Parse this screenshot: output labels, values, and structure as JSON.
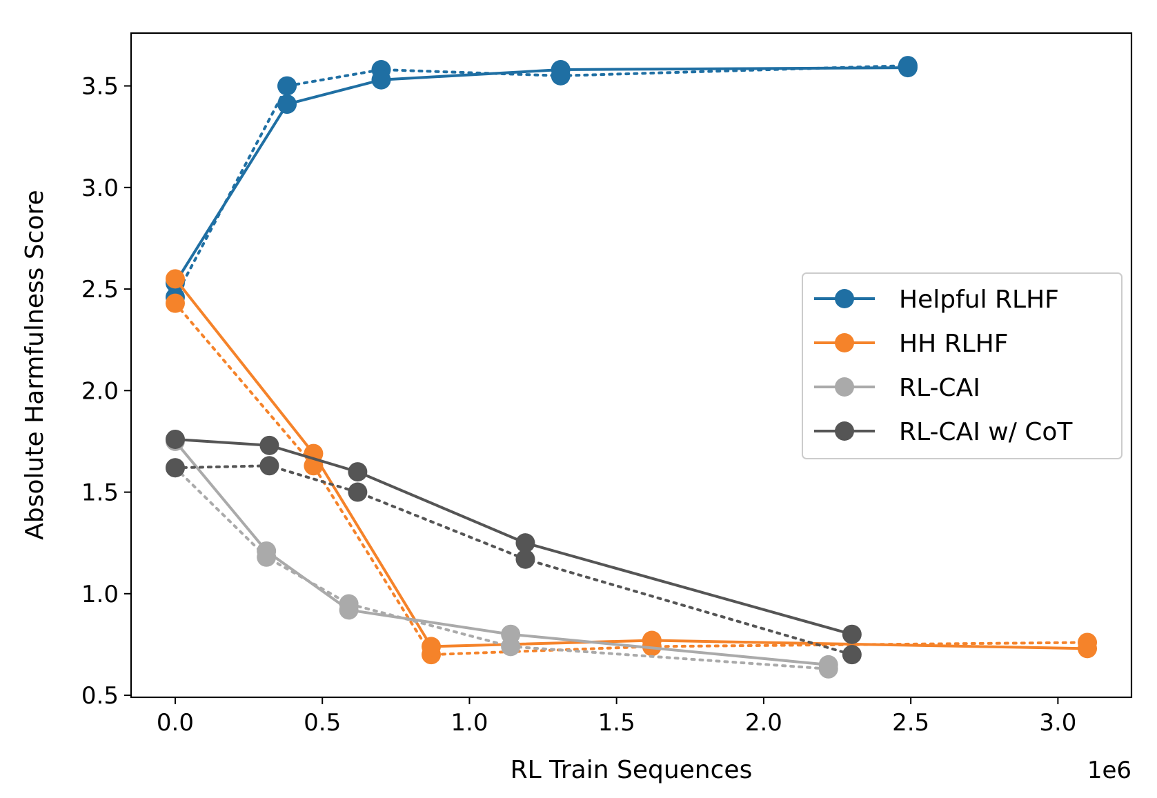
{
  "chart_data": {
    "type": "line",
    "xlabel": "RL Train Sequences",
    "ylabel": "Absolute Harmfulness Score",
    "x_multiplier_label": "1e6",
    "xlim": [
      -0.15,
      3.25
    ],
    "ylim": [
      0.49,
      3.76
    ],
    "xticks": [
      0.0,
      0.5,
      1.0,
      1.5,
      2.0,
      2.5,
      3.0
    ],
    "xtick_labels": [
      "0.0",
      "0.5",
      "1.0",
      "1.5",
      "2.0",
      "2.5",
      "3.0"
    ],
    "yticks": [
      0.5,
      1.0,
      1.5,
      2.0,
      2.5,
      3.0,
      3.5
    ],
    "ytick_labels": [
      "0.5",
      "1.0",
      "1.5",
      "2.0",
      "2.5",
      "3.0",
      "3.5"
    ],
    "legend_placement": "center-right",
    "series": [
      {
        "name": "Helpful RLHF",
        "color": "#1f6fa3",
        "solid": {
          "x": [
            0.0,
            0.38,
            0.7,
            1.31,
            2.49
          ],
          "y": [
            2.53,
            3.41,
            3.53,
            3.58,
            3.59
          ]
        },
        "dotted": {
          "x": [
            0.0,
            0.38,
            0.7,
            1.31,
            2.49
          ],
          "y": [
            2.46,
            3.5,
            3.58,
            3.55,
            3.6
          ]
        }
      },
      {
        "name": "HH RLHF",
        "color": "#f5832a",
        "solid": {
          "x": [
            0.0,
            0.47,
            0.87,
            1.62,
            3.1
          ],
          "y": [
            2.55,
            1.69,
            0.74,
            0.77,
            0.73
          ]
        },
        "dotted": {
          "x": [
            0.0,
            0.47,
            0.87,
            1.62,
            3.1
          ],
          "y": [
            2.43,
            1.63,
            0.7,
            0.74,
            0.76
          ]
        }
      },
      {
        "name": "RL-CAI",
        "color": "#aaaaaa",
        "solid": {
          "x": [
            0.0,
            0.31,
            0.59,
            1.14,
            2.22
          ],
          "y": [
            1.75,
            1.21,
            0.92,
            0.8,
            0.65
          ]
        },
        "dotted": {
          "x": [
            0.0,
            0.31,
            0.59,
            1.14,
            2.22
          ],
          "y": [
            1.62,
            1.18,
            0.95,
            0.74,
            0.63
          ]
        }
      },
      {
        "name": "RL-CAI w/ CoT",
        "color": "#555555",
        "solid": {
          "x": [
            0.0,
            0.32,
            0.62,
            1.19,
            2.3
          ],
          "y": [
            1.76,
            1.73,
            1.6,
            1.25,
            0.8
          ]
        },
        "dotted": {
          "x": [
            0.0,
            0.32,
            0.62,
            1.19,
            2.3
          ],
          "y": [
            1.62,
            1.63,
            1.5,
            1.17,
            0.7
          ]
        }
      }
    ]
  }
}
